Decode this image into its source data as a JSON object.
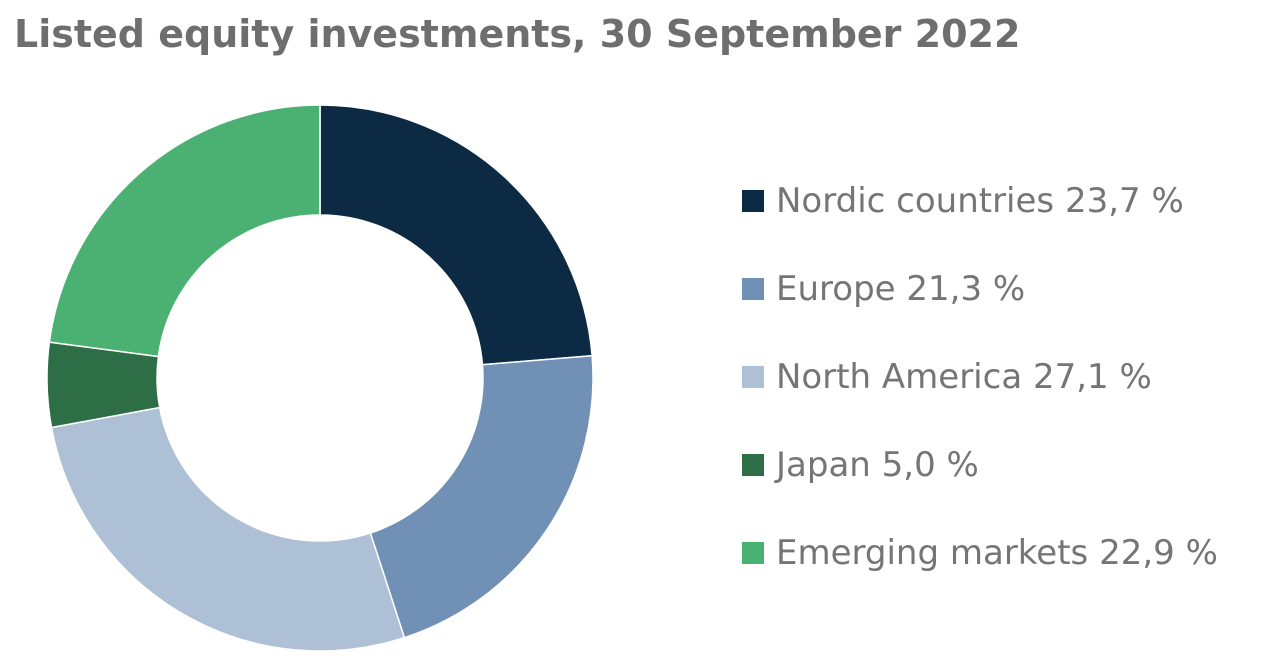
{
  "chart_data": {
    "type": "pie",
    "title": "Listed equity investments, 30 September 2022",
    "legend_position": "right",
    "slices": [
      {
        "label": "Nordic countries",
        "value": 23.7,
        "value_text": "23,7 %",
        "color": "#0c2a43"
      },
      {
        "label": "Europe",
        "value": 21.3,
        "value_text": "21,3 %",
        "color": "#7090b5"
      },
      {
        "label": "North America",
        "value": 27.1,
        "value_text": "27,1 %",
        "color": "#adc0d6"
      },
      {
        "label": "Japan",
        "value": 5.0,
        "value_text": "5,0 %",
        "color": "#2e6e46"
      },
      {
        "label": "Emerging markets",
        "value": 22.9,
        "value_text": "22,9 %",
        "color": "#4ab173"
      }
    ]
  }
}
